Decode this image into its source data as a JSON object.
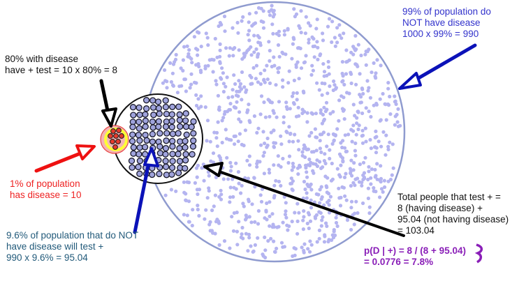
{
  "labels": {
    "no_disease": "99% of population do\nNOT have disease\n1000 x 99% = 990",
    "with_disease": "80% with disease\nhave + test = 10 x 80% = 8",
    "has_disease": "1% of population\nhas disease = 10",
    "false_positive": "9.6% of population that do NOT\nhave disease will test +\n990 x 9.6% = 95.04",
    "total_positive": "Total people that test + =\n8 (having disease) +\n95.04 (not having disease)\n= 103.04",
    "probability": "p(D | +) = 8 / (8 + 95.04)\n= 0.0776 = 7.8%"
  },
  "colors": {
    "population_dot": "#b4b4f0",
    "population_outline": "#8f9bcf",
    "positive_dot": "#9fa3dc",
    "disease_fill": "#f4b4b4",
    "disease_dot": "#e83a2c",
    "highlight_ring": "#ffff33",
    "arrow_blue": "#0b12b8",
    "arrow_red": "#ee1111",
    "arrow_black": "#000000",
    "probability_text": "#8a1fb8"
  }
}
